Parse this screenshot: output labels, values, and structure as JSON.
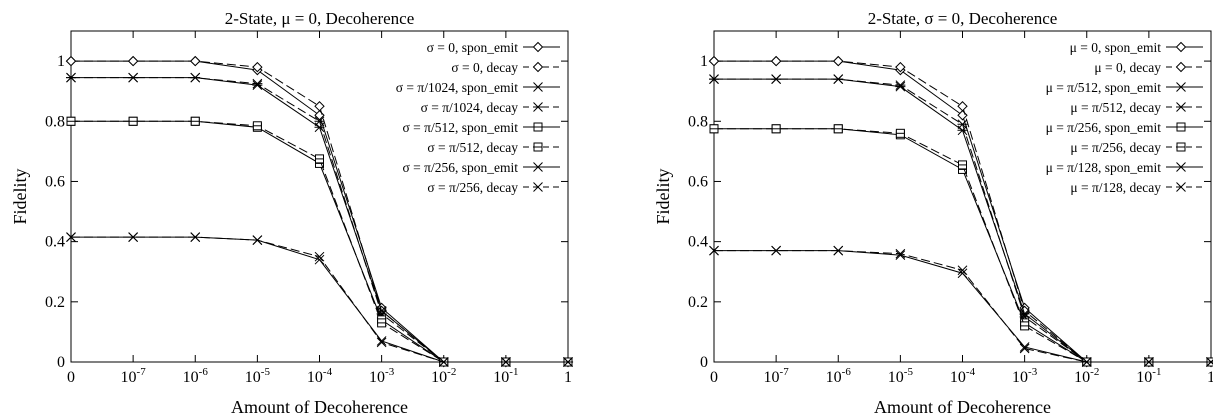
{
  "chart_data": [
    {
      "type": "line",
      "title": "2-State, μ = 0, Decoherence",
      "xlabel": "Amount of Decoherence",
      "ylabel": "Fidelity",
      "x_categories": [
        "0",
        "10^-7",
        "10^-6",
        "10^-5",
        "10^-4",
        "10^-3",
        "10^-2",
        "10^-1",
        "1"
      ],
      "x_tick_labels": [
        {
          "base": "0",
          "exp": ""
        },
        {
          "base": "10",
          "exp": "-7"
        },
        {
          "base": "10",
          "exp": "-6"
        },
        {
          "base": "10",
          "exp": "-5"
        },
        {
          "base": "10",
          "exp": "-4"
        },
        {
          "base": "10",
          "exp": "-3"
        },
        {
          "base": "10",
          "exp": "-2"
        },
        {
          "base": "10",
          "exp": "-1"
        },
        {
          "base": "1",
          "exp": ""
        }
      ],
      "ylim": [
        0,
        1.1
      ],
      "y_ticks": [
        0,
        0.2,
        0.4,
        0.6,
        0.8,
        1
      ],
      "y_tick_labels": [
        "0",
        "0.2",
        "0.4",
        "0.6",
        "0.8",
        "1"
      ],
      "legend_position": "top-right",
      "series": [
        {
          "name": "σ = 0, spon_emit",
          "marker": "diamond",
          "dash": "solid",
          "values": [
            1.0,
            1.0,
            1.0,
            0.97,
            0.82,
            0.18,
            0.0,
            0.0,
            0.0
          ]
        },
        {
          "name": "σ = 0, decay",
          "marker": "diamond",
          "dash": "dashed",
          "values": [
            1.0,
            1.0,
            1.0,
            0.98,
            0.85,
            0.17,
            0.0,
            0.0,
            0.0
          ]
        },
        {
          "name": "σ = π/1024, spon_emit",
          "marker": "asterisk",
          "dash": "solid",
          "values": [
            0.945,
            0.945,
            0.945,
            0.92,
            0.78,
            0.17,
            0.0,
            0.0,
            0.0
          ]
        },
        {
          "name": "σ = π/1024, decay",
          "marker": "asterisk",
          "dash": "dashed",
          "values": [
            0.945,
            0.945,
            0.945,
            0.925,
            0.8,
            0.16,
            0.0,
            0.0,
            0.0
          ]
        },
        {
          "name": "σ = π/512, spon_emit",
          "marker": "square",
          "dash": "solid",
          "values": [
            0.8,
            0.8,
            0.8,
            0.78,
            0.66,
            0.14,
            0.0,
            0.0,
            0.0
          ]
        },
        {
          "name": "σ = π/512, decay",
          "marker": "square",
          "dash": "dashed",
          "values": [
            0.8,
            0.8,
            0.8,
            0.785,
            0.675,
            0.13,
            0.0,
            0.0,
            0.0
          ]
        },
        {
          "name": "σ = π/256, spon_emit",
          "marker": "x",
          "dash": "solid",
          "values": [
            0.415,
            0.415,
            0.415,
            0.405,
            0.34,
            0.07,
            0.0,
            0.0,
            0.0
          ]
        },
        {
          "name": "σ = π/256, decay",
          "marker": "x",
          "dash": "dashed",
          "values": [
            0.415,
            0.415,
            0.415,
            0.405,
            0.35,
            0.065,
            0.0,
            0.0,
            0.0
          ]
        }
      ]
    },
    {
      "type": "line",
      "title": "2-State, σ = 0, Decoherence",
      "xlabel": "Amount of Decoherence",
      "ylabel": "Fidelity",
      "x_categories": [
        "0",
        "10^-7",
        "10^-6",
        "10^-5",
        "10^-4",
        "10^-3",
        "10^-2",
        "10^-1",
        "1"
      ],
      "x_tick_labels": [
        {
          "base": "0",
          "exp": ""
        },
        {
          "base": "10",
          "exp": "-7"
        },
        {
          "base": "10",
          "exp": "-6"
        },
        {
          "base": "10",
          "exp": "-5"
        },
        {
          "base": "10",
          "exp": "-4"
        },
        {
          "base": "10",
          "exp": "-3"
        },
        {
          "base": "10",
          "exp": "-2"
        },
        {
          "base": "10",
          "exp": "-1"
        },
        {
          "base": "1",
          "exp": ""
        }
      ],
      "ylim": [
        0,
        1.1
      ],
      "y_ticks": [
        0,
        0.2,
        0.4,
        0.6,
        0.8,
        1
      ],
      "y_tick_labels": [
        "0",
        "0.2",
        "0.4",
        "0.6",
        "0.8",
        "1"
      ],
      "legend_position": "top-right",
      "series": [
        {
          "name": "μ = 0, spon_emit",
          "marker": "diamond",
          "dash": "solid",
          "values": [
            1.0,
            1.0,
            1.0,
            0.97,
            0.82,
            0.18,
            0.0,
            0.0,
            0.0
          ]
        },
        {
          "name": "μ = 0, decay",
          "marker": "diamond",
          "dash": "dashed",
          "values": [
            1.0,
            1.0,
            1.0,
            0.98,
            0.85,
            0.17,
            0.0,
            0.0,
            0.0
          ]
        },
        {
          "name": "μ = π/512, spon_emit",
          "marker": "asterisk",
          "dash": "solid",
          "values": [
            0.94,
            0.94,
            0.94,
            0.915,
            0.77,
            0.16,
            0.0,
            0.0,
            0.0
          ]
        },
        {
          "name": "μ = π/512, decay",
          "marker": "asterisk",
          "dash": "dashed",
          "values": [
            0.94,
            0.94,
            0.94,
            0.92,
            0.79,
            0.15,
            0.0,
            0.0,
            0.0
          ]
        },
        {
          "name": "μ = π/256, spon_emit",
          "marker": "square",
          "dash": "solid",
          "values": [
            0.775,
            0.775,
            0.775,
            0.755,
            0.64,
            0.13,
            0.0,
            0.0,
            0.0
          ]
        },
        {
          "name": "μ = π/256, decay",
          "marker": "square",
          "dash": "dashed",
          "values": [
            0.775,
            0.775,
            0.775,
            0.76,
            0.655,
            0.12,
            0.0,
            0.0,
            0.0
          ]
        },
        {
          "name": "μ = π/128, spon_emit",
          "marker": "x",
          "dash": "solid",
          "values": [
            0.37,
            0.37,
            0.37,
            0.355,
            0.295,
            0.05,
            0.0,
            0.0,
            0.0
          ]
        },
        {
          "name": "μ = π/128, decay",
          "marker": "x",
          "dash": "dashed",
          "values": [
            0.37,
            0.37,
            0.37,
            0.36,
            0.305,
            0.045,
            0.0,
            0.0,
            0.0
          ]
        }
      ]
    }
  ]
}
